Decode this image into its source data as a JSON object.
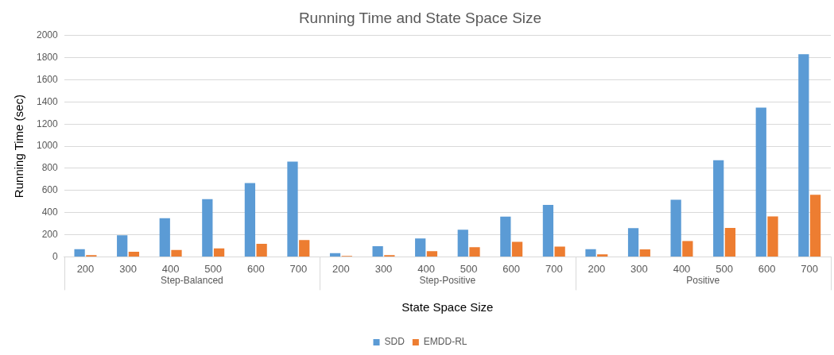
{
  "chart_data": {
    "type": "bar",
    "title": "Running Time and State Space Size",
    "xlabel": "State Space Size",
    "ylabel": "Running Time (sec)",
    "categories": [
      "200",
      "300",
      "400",
      "500",
      "600",
      "700",
      "200",
      "300",
      "400",
      "500",
      "600",
      "700",
      "200",
      "300",
      "400",
      "500",
      "600",
      "700"
    ],
    "annotations": [
      "Step-Balanced",
      "Step-Positive",
      "Positive"
    ],
    "series": [
      {
        "name": "SDD",
        "color": "#5b9bd5",
        "values": [
          69,
          195,
          349,
          522,
          667,
          860,
          34,
          97,
          166,
          246,
          363,
          469,
          69,
          260,
          517,
          874,
          1349,
          1832
        ]
      },
      {
        "name": "EMDD-RL",
        "color": "#ed7d31",
        "values": [
          16,
          46,
          62,
          76,
          117,
          152,
          9,
          16,
          51,
          87,
          136,
          92,
          23,
          67,
          143,
          262,
          366,
          561
        ]
      }
    ],
    "ylim": [
      0,
      2000
    ],
    "yticks": [
      0,
      200,
      400,
      600,
      800,
      1000,
      1200,
      1400,
      1600,
      1800,
      2000
    ],
    "grid": "y",
    "legend": "bottom"
  }
}
